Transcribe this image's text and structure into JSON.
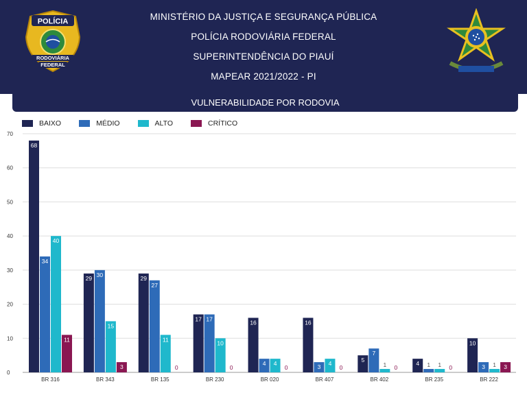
{
  "header": {
    "line1": "MINISTÉRIO DA JUSTIÇA E SEGURANÇA PÚBLICA",
    "line2": "POLÍCIA RODOVIÁRIA FEDERAL",
    "line3": "SUPERINTENDÊNCIA DO PIAUÍ",
    "line4": "MAPEAR 2021/2022 - PI",
    "subtitle": "VULNERABILIDADE POR RODOVIA"
  },
  "badge": {
    "line1": "POLÍCIA",
    "line2": "RODOVIÁRIA",
    "line3": "FEDERAL"
  },
  "colors": {
    "header_bg": "#1f2553",
    "baixo": "#1f2553",
    "medio": "#2e6bb8",
    "alto": "#1fb8cc",
    "critico": "#8a1752"
  },
  "chart_data": {
    "type": "bar",
    "title": "VULNERABILIDADE POR RODOVIA",
    "xlabel": "",
    "ylabel": "",
    "ylim": [
      0,
      70
    ],
    "yticks": [
      0,
      10,
      20,
      30,
      40,
      50,
      60,
      70
    ],
    "grid": true,
    "legend_position": "top-left",
    "categories": [
      "BR 316",
      "BR 343",
      "BR 135",
      "BR 230",
      "BR 020",
      "BR 407",
      "BR 402",
      "BR 235",
      "BR 222"
    ],
    "series": [
      {
        "name": "BAIXO",
        "color": "#1f2553",
        "values": [
          68,
          29,
          29,
          17,
          16,
          16,
          5,
          4,
          10
        ]
      },
      {
        "name": "MÉDIO",
        "color": "#2e6bb8",
        "values": [
          34,
          30,
          27,
          17,
          4,
          3,
          7,
          1,
          3
        ]
      },
      {
        "name": "ALTO",
        "color": "#1fb8cc",
        "values": [
          40,
          15,
          11,
          10,
          4,
          4,
          1,
          1,
          1
        ]
      },
      {
        "name": "CRÍTICO",
        "color": "#8a1752",
        "values": [
          11,
          3,
          0,
          0,
          0,
          0,
          0,
          0,
          3
        ]
      }
    ]
  }
}
